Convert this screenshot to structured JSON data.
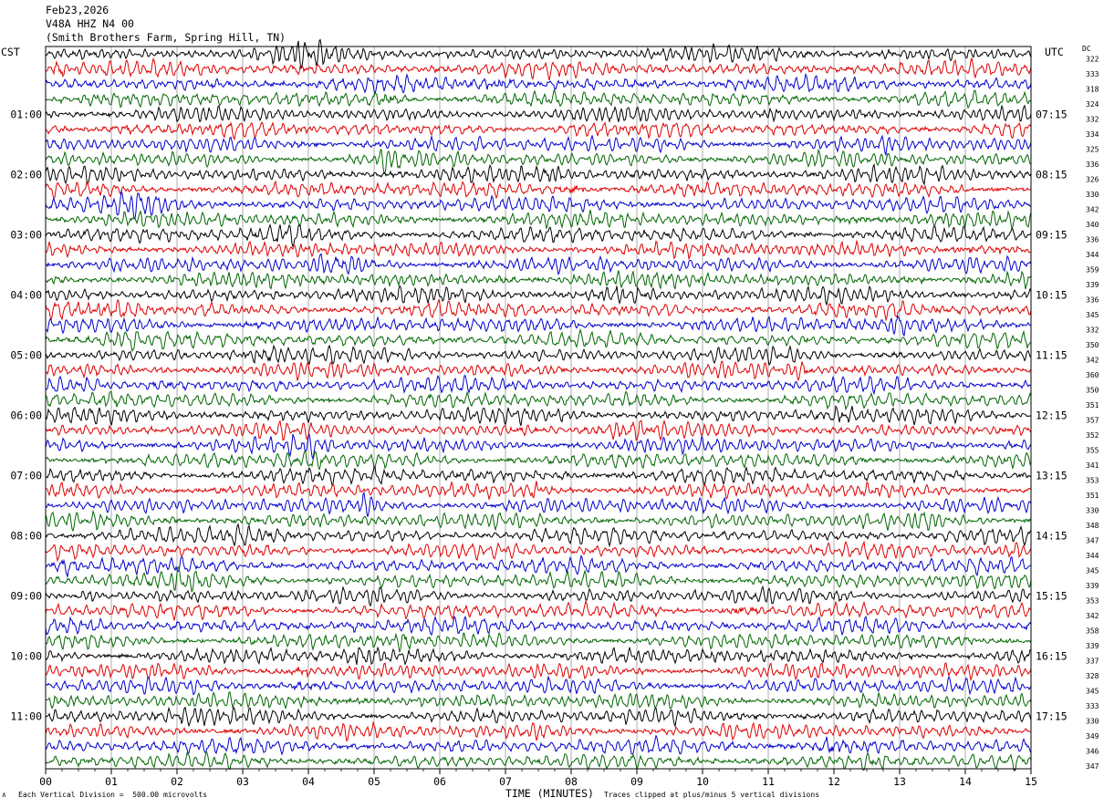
{
  "header": {
    "date": "Feb23,2026",
    "station": "V48A HHZ N4 00",
    "location": "(Smith Brothers Farm, Spring Hill, TN)"
  },
  "left_timezone": "CST",
  "right_timezone": "UTC",
  "dc_label": "DC",
  "footer": {
    "scale_note": "Each Vertical Division =  500.00 microvolts",
    "clip_note": "Traces clipped at plus/minus 5 vertical divisions",
    "corner_mark": "∧"
  },
  "chart_data": {
    "type": "line",
    "title": "",
    "xlabel": "TIME (MINUTES)",
    "ylabel": "",
    "xlim": [
      0,
      15
    ],
    "x_ticks": [
      "00",
      "01",
      "02",
      "03",
      "04",
      "05",
      "06",
      "07",
      "08",
      "09",
      "10",
      "11",
      "12",
      "13",
      "14",
      "15"
    ],
    "left_hour_labels": [
      "01:00",
      "02:00",
      "03:00",
      "04:00",
      "05:00",
      "06:00",
      "07:00",
      "08:00",
      "09:00",
      "10:00",
      "11:00"
    ],
    "right_hour_labels": [
      "07:15",
      "08:15",
      "09:15",
      "10:15",
      "11:15",
      "12:15",
      "13:15",
      "14:15",
      "15:15",
      "16:15",
      "17:15"
    ],
    "trace_colors": [
      "#000000",
      "#dd0000",
      "#0000cc",
      "#006600"
    ],
    "grid": true,
    "trace_count": 48,
    "dc_offsets": [
      322,
      333,
      318,
      324,
      332,
      334,
      325,
      336,
      326,
      330,
      342,
      340,
      336,
      344,
      359,
      339,
      336,
      345,
      332,
      350,
      342,
      360,
      350,
      351,
      357,
      352,
      355,
      341,
      353,
      351,
      330,
      348,
      347,
      344,
      345,
      339,
      353,
      342,
      358,
      339,
      337,
      328,
      345,
      333,
      330,
      349,
      346,
      347
    ]
  }
}
